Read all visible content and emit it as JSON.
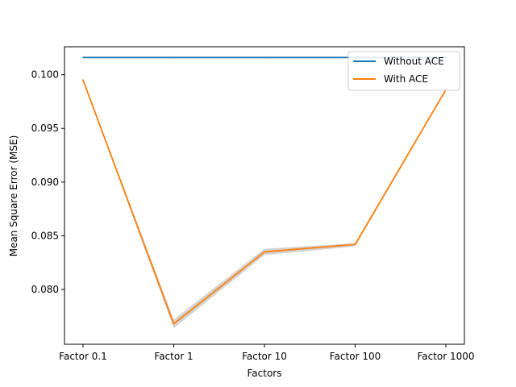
{
  "chart_data": {
    "type": "line",
    "title": "",
    "xlabel": "Factors",
    "ylabel": "Mean Square Error (MSE)",
    "categories": [
      "Factor 0.1",
      "Factor 1",
      "Factor 10",
      "Factor 100",
      "Factor 1000"
    ],
    "ylim": [
      0.0749,
      0.1026
    ],
    "yticks": [
      0.08,
      0.085,
      0.09,
      0.095,
      0.1
    ],
    "ytick_labels": [
      "0.080",
      "0.085",
      "0.090",
      "0.095",
      "0.100"
    ],
    "grid": false,
    "legend_position": "top-right",
    "series": [
      {
        "name": "Without ACE",
        "color": "#1f77b4",
        "values": [
          0.1016,
          0.1016,
          0.1016,
          0.1016,
          0.1016
        ]
      },
      {
        "name": "With ACE",
        "color": "#ff7f0e",
        "values": [
          0.0995,
          0.0768,
          0.0835,
          0.0842,
          0.0986
        ],
        "band": {
          "color": "#c0c0c0",
          "lower": [
            0.0994,
            0.0764,
            0.0832,
            0.084,
            0.0985
          ],
          "upper": [
            0.0996,
            0.0772,
            0.0838,
            0.0843,
            0.0987
          ]
        }
      }
    ]
  }
}
